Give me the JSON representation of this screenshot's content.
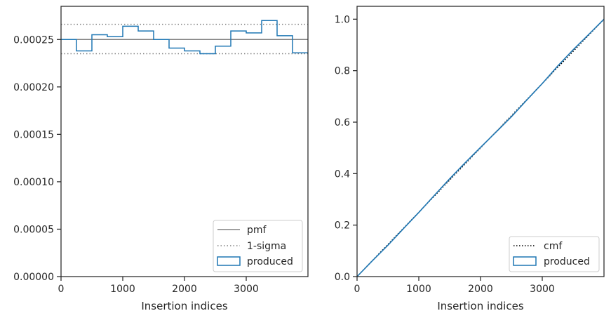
{
  "chart_data": [
    {
      "type": "step",
      "xlabel": "Insertion indices",
      "ylabel": "",
      "xlim": [
        0,
        4000
      ],
      "ylim": [
        0,
        0.000285
      ],
      "xticks": [
        0,
        1000,
        2000,
        3000
      ],
      "yticks": [
        0,
        5e-05,
        0.0001,
        0.00015,
        0.0002,
        0.00025
      ],
      "xtick_labels": [
        "0",
        "1000",
        "2000",
        "3000"
      ],
      "ytick_labels": [
        "0.00000",
        "0.00005",
        "0.00010",
        "0.00015",
        "0.00020",
        "0.00025"
      ],
      "legend_position": "lower right",
      "series": [
        {
          "name": "pmf",
          "style": "solid",
          "color": "#808080",
          "y": 0.00025
        },
        {
          "name": "1-sigma",
          "style": "dotted",
          "color": "#808080",
          "y_values": [
            0.000266,
            0.000235
          ]
        },
        {
          "name": "produced",
          "style": "step",
          "color": "#1f77b4",
          "bin_edges": [
            0,
            250,
            500,
            750,
            1000,
            1250,
            1500,
            1750,
            2000,
            2250,
            2500,
            2750,
            3000,
            3250,
            3500,
            3750,
            4000
          ],
          "values": [
            0.00025,
            0.000238,
            0.000255,
            0.000253,
            0.000264,
            0.000259,
            0.00025,
            0.000241,
            0.000238,
            0.000235,
            0.000243,
            0.000259,
            0.000257,
            0.00027,
            0.000254,
            0.000236
          ]
        }
      ]
    },
    {
      "type": "line",
      "xlabel": "Insertion indices",
      "ylabel": "",
      "xlim": [
        0,
        4000
      ],
      "ylim": [
        0,
        1.05
      ],
      "xticks": [
        0,
        1000,
        2000,
        3000
      ],
      "yticks": [
        0,
        0.2,
        0.4,
        0.6,
        0.8,
        1.0
      ],
      "xtick_labels": [
        "0",
        "1000",
        "2000",
        "3000"
      ],
      "ytick_labels": [
        "0.0",
        "0.2",
        "0.4",
        "0.6",
        "0.8",
        "1.0"
      ],
      "legend_position": "lower right",
      "series": [
        {
          "name": "cmf",
          "style": "dotted",
          "color": "#000000",
          "x": [
            0,
            4000
          ],
          "y": [
            0,
            1.0
          ]
        },
        {
          "name": "produced",
          "style": "step",
          "color": "#1f77b4",
          "x": [
            0,
            250,
            500,
            750,
            1000,
            1250,
            1500,
            1750,
            2000,
            2250,
            2500,
            2750,
            3000,
            3250,
            3500,
            3750,
            4000
          ],
          "y": [
            0,
            0.062,
            0.122,
            0.186,
            0.249,
            0.315,
            0.38,
            0.442,
            0.502,
            0.561,
            0.621,
            0.686,
            0.75,
            0.818,
            0.881,
            0.94,
            1.0
          ]
        }
      ]
    }
  ]
}
